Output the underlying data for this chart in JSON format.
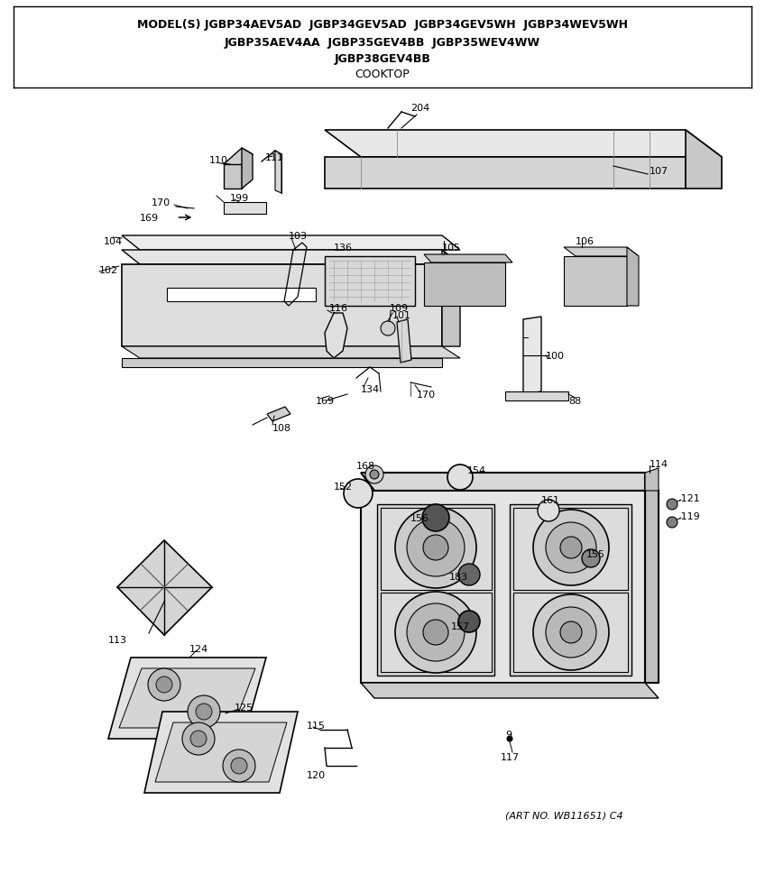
{
  "title_lines": [
    "MODEL(S) JGBP34AEV5AD  JGBP34GEV5AD  JGBP34GEV5WH  JGBP34WEV5WH",
    "JGBP35AEV4AA  JGBP35GEV4BB  JGBP35WEV4WW",
    "JGBP38GEV4BB",
    "COOKTOP"
  ],
  "art_no": "(ART NO. WB11651) C4",
  "bg_color": "#ffffff"
}
